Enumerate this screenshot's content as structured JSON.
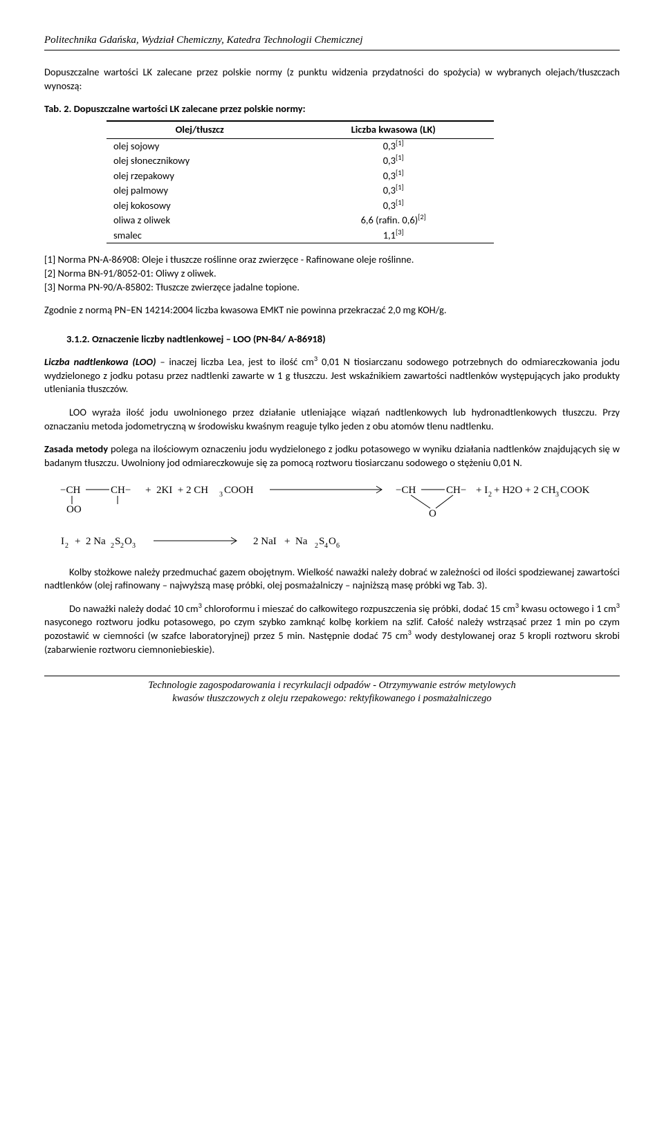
{
  "header": "Politechnika Gdańska, Wydział Chemiczny, Katedra Technologii Chemicznej",
  "intro": "Dopuszczalne wartości LK zalecane przez polskie normy (z punktu widzenia przydatności do spożycia) w wybranych olejach/tłuszczach wynoszą:",
  "tab_caption": "Tab. 2. Dopuszczalne wartości LK zalecane przez polskie normy:",
  "table": {
    "col0": "Olej/tłuszcz",
    "col1": "Liczba kwasowa (LK)",
    "rows": [
      {
        "o": "olej sojowy",
        "v": "0,3",
        "s": "[1]"
      },
      {
        "o": "olej słonecznikowy",
        "v": "0,3",
        "s": "[1]"
      },
      {
        "o": "olej rzepakowy",
        "v": "0,3",
        "s": "[1]"
      },
      {
        "o": "olej palmowy",
        "v": "0,3",
        "s": "[1]"
      },
      {
        "o": "olej kokosowy",
        "v": "0,3",
        "s": "[1]"
      },
      {
        "o": "oliwa z oliwek",
        "v": "6,6 (rafin. 0,6)",
        "s": "[2]"
      },
      {
        "o": "smalec",
        "v": "1,1",
        "s": "[3]"
      }
    ]
  },
  "ref1": "[1] Norma PN-A-86908: Oleje i tłuszcze roślinne oraz zwierzęce - Rafinowane oleje roślinne.",
  "ref2": "[2] Norma BN-91/8052-01: Oliwy z oliwek.",
  "ref3": "[3] Norma PN-90/A-85802: Tłuszcze zwierzęce jadalne topione.",
  "norm_line": "Zgodnie z normą PN−EN 14214:2004 liczba kwasowa EMKT nie powinna przekraczać 2,0 mg KOH/g.",
  "section_num": "3.1.2. Oznaczenie liczby nadtlenkowej – LOO (PN-84/ A-86918)",
  "loo": {
    "lead_bold": "Liczba nadtlenkowa (LOO)",
    "lead_rest1": " – inaczej liczba Lea, jest to ilość cm",
    "lead_sup": "3",
    "lead_rest2": " 0,01 N tiosiarczanu sodowego potrzebnych do odmiareczkowania jodu wydzielonego z jodku potasu przez nadtlenki zawarte w 1 g tłuszczu. Jest wskaźnikiem zawartości nadtlenków występujących jako produkty utleniania tłuszczów."
  },
  "loo_p2": "LOO wyraża ilość jodu uwolnionego przez działanie utleniające wiązań nadtlenkowych lub hydronadtlenkowych tłuszczu. Przy oznaczaniu metoda jodometryczną w środowisku kwaśnym reaguje tylko jeden z obu atomów tlenu nadtlenku.",
  "zasada_bold": "Zasada metody",
  "zasada_rest": " polega na ilościowym oznaczeniu jodu wydzielonego z jodku potasowego w wyniku działania nadtlenków znajdujących się w badanym tłuszczu. Uwolniony jod odmiareczkowuje się  za pomocą roztworu tiosiarczanu sodowego o stężeniu 0,01 N.",
  "kolby_p1_part1": "Kolby stożkowe należy przedmuchać gazem obojętnym. Wielkość naważki należy dobrać w zależności od ilości spodziewanej zawartości nadtlenków (olej rafinowany – najwyższą masę próbki, olej posmażalniczy – najniższą masę próbki wg Tab. 3).",
  "kolby_p2": "Do naważki należy dodać 10 cm³ chloroformu i mieszać do całkowitego rozpuszczenia się próbki, dodać 15 cm³ kwasu octowego i 1 cm³ nasyconego roztworu jodku potasowego, po czym szybko zamknąć kolbę korkiem na szlif. Całość należy wstrząsać przez 1 min po czym pozostawić w ciemności (w szafce laboratoryjnej) przez 5 min. Następnie dodać 75 cm³ wody destylowanej oraz 5 kropli roztworu skrobi (zabarwienie roztworu ciemnoniebieskie).",
  "footer1": "Technologie zagospodarowania i recyrkulacji odpadów - Otrzymywanie estrów metylowych",
  "footer2": "kwasów tłuszczowych z oleju rzepakowego: rektyfikowanego i posmażalniczego"
}
